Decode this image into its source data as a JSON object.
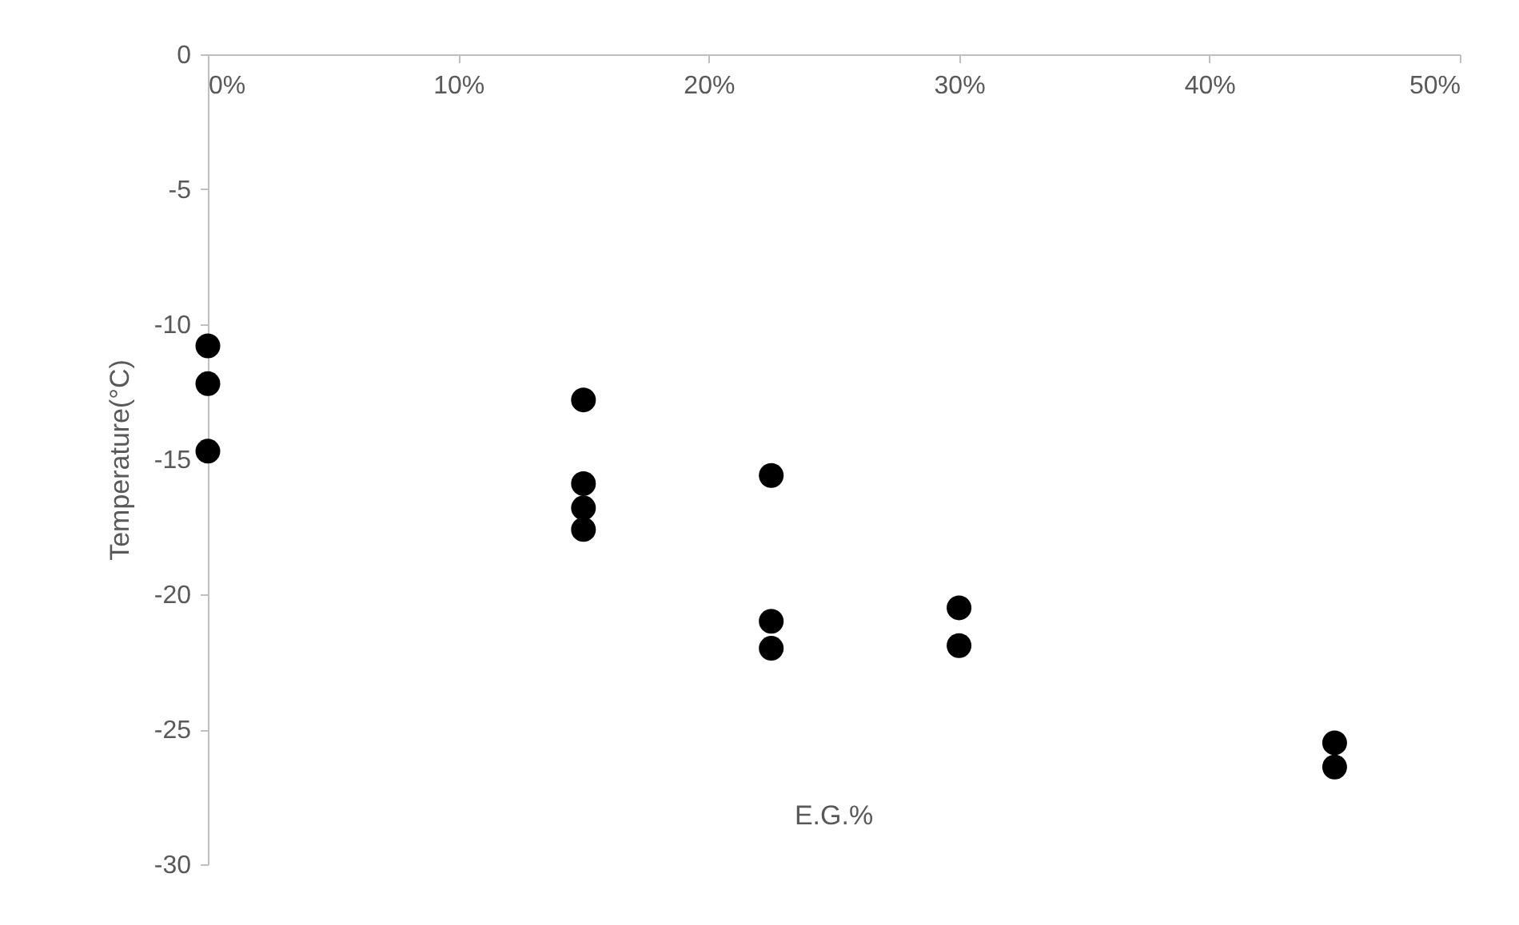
{
  "chart_data": {
    "type": "scatter",
    "xlabel": "E.G.%",
    "ylabel": "Temperature(°C)",
    "x": [
      0,
      0,
      0,
      15,
      15,
      15,
      15,
      22.5,
      22.5,
      22.5,
      30,
      30,
      45,
      45
    ],
    "series": [
      {
        "color": "#000000",
        "values": [
          -10.8,
          -12.2,
          -14.7,
          -12.8,
          -15.9,
          -16.8,
          -17.6,
          -15.6,
          -21.0,
          -22.0,
          -20.5,
          -21.9,
          -25.5,
          -26.4
        ]
      }
    ],
    "xlim": [
      0,
      50
    ],
    "xticks": [
      {
        "value": 0,
        "label": "0%"
      },
      {
        "value": 10,
        "label": "10%"
      },
      {
        "value": 20,
        "label": "20%"
      },
      {
        "value": 30,
        "label": "30%"
      },
      {
        "value": 40,
        "label": "40%"
      },
      {
        "value": 50,
        "label": "50%"
      }
    ],
    "ylim": [
      -30,
      0
    ],
    "yticks": [
      0,
      -5,
      -10,
      -15,
      -20,
      -25,
      -30
    ],
    "grid": false,
    "legend": false,
    "marker": "circle"
  }
}
